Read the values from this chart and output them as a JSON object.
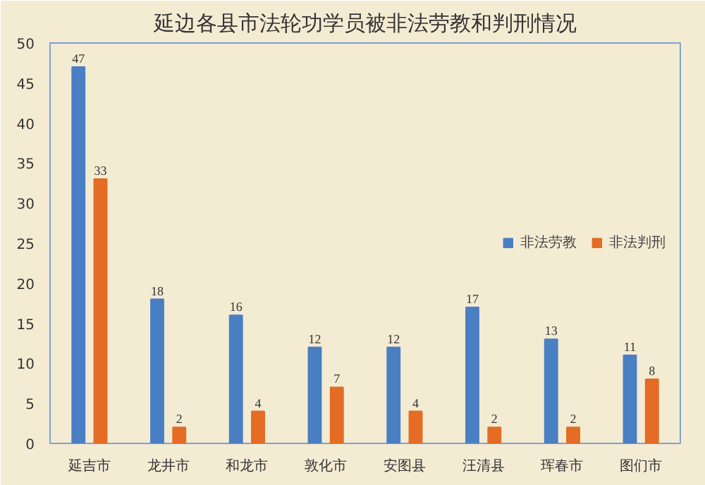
{
  "chart_data": {
    "type": "bar",
    "title": "延边各县市法轮功学员被非法劳教和判刑情况",
    "categories": [
      "延吉市",
      "龙井市",
      "和龙市",
      "敦化市",
      "安图县",
      "汪清县",
      "珲春市",
      "图们市"
    ],
    "series": [
      {
        "name": "非法劳教",
        "color": "#4a7fc4",
        "values": [
          47,
          18,
          16,
          12,
          12,
          17,
          13,
          11
        ]
      },
      {
        "name": "非法判刑",
        "color": "#e46c24",
        "values": [
          33,
          2,
          4,
          7,
          4,
          2,
          2,
          8
        ]
      }
    ],
    "ylim": [
      0,
      50
    ],
    "yticks": [
      0,
      5,
      10,
      15,
      20,
      25,
      30,
      35,
      40,
      45,
      50
    ],
    "grid": false,
    "legend": "right",
    "data_labels": true
  }
}
